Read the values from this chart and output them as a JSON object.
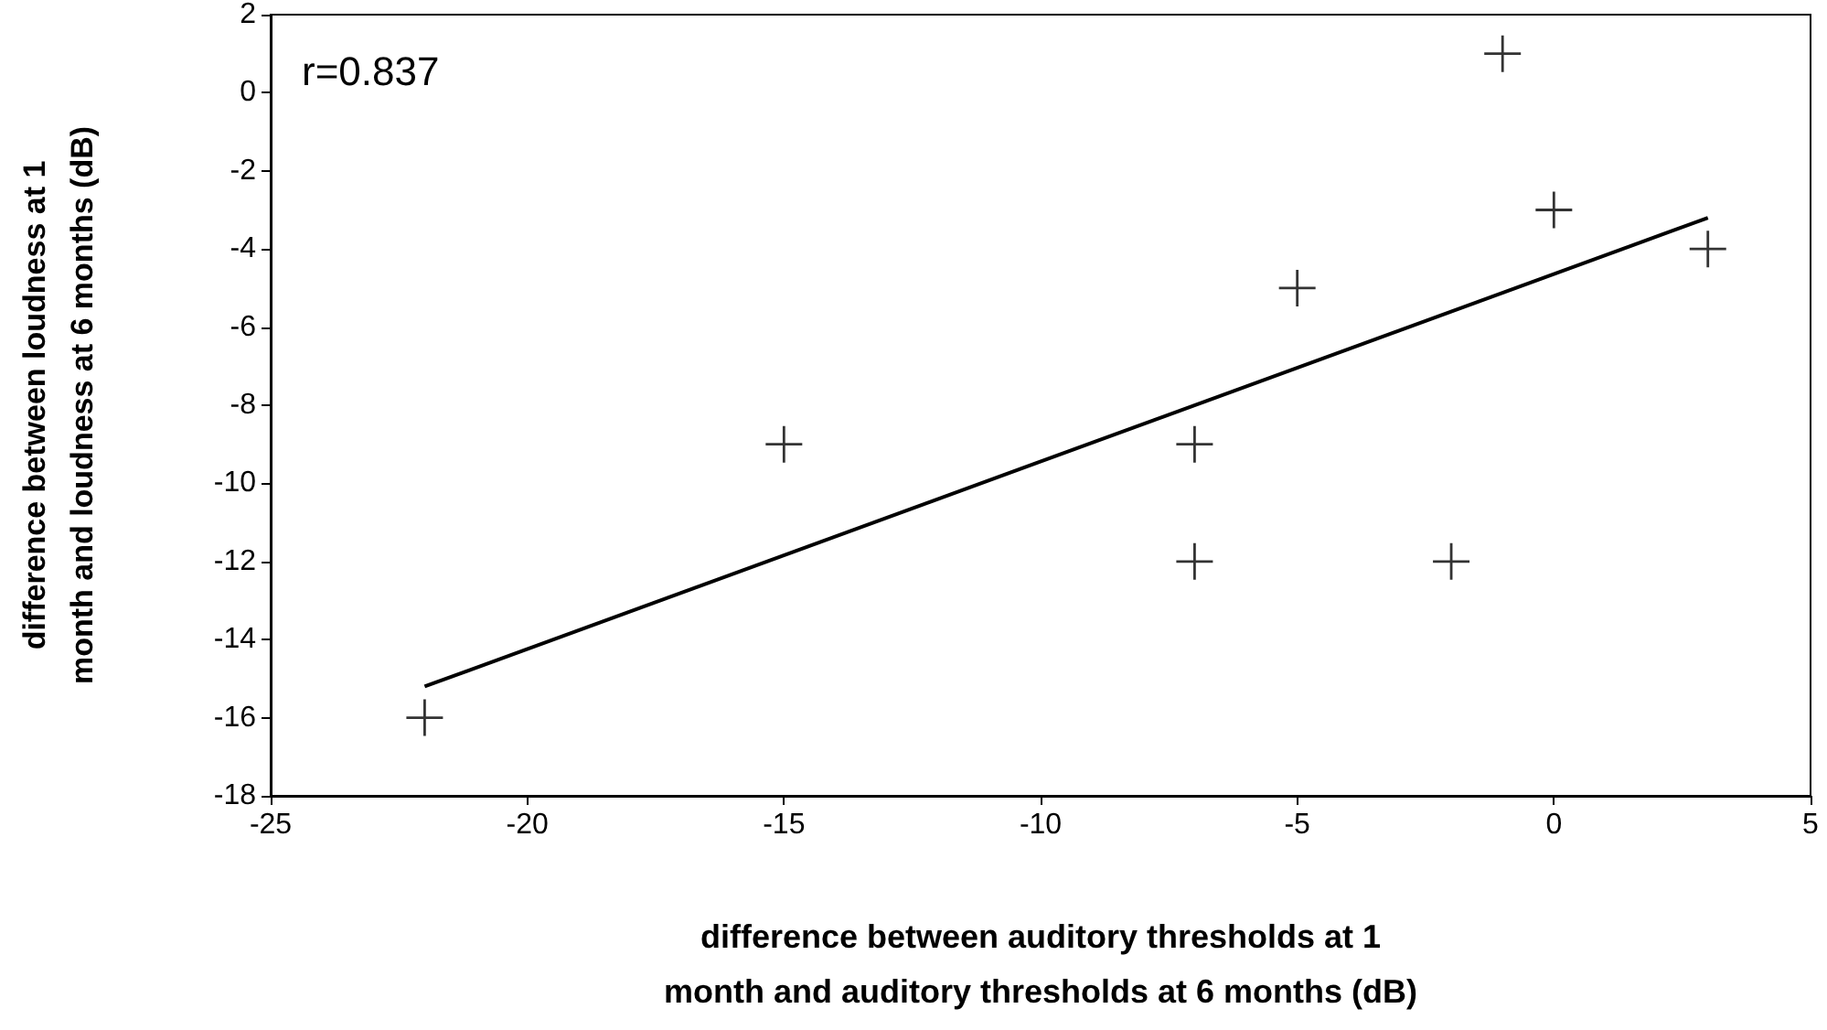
{
  "chart_data": {
    "type": "scatter",
    "xlabel": "difference between auditory thresholds at 1 month and auditory thresholds at 6 months (dB)",
    "ylabel": "difference between loudness at 1 month and loudness at 6 months (dB)",
    "annotations": [
      "r=0.837"
    ],
    "xlim": [
      -25,
      5
    ],
    "xticks": [
      -25,
      -20,
      -15,
      -10,
      -5,
      0,
      5
    ],
    "ylim": [
      -18,
      2
    ],
    "yticks": [
      -18,
      -16,
      -14,
      -12,
      -10,
      -8,
      -6,
      -4,
      -2,
      0,
      2
    ],
    "marker": "cross",
    "series": [
      {
        "type": "scatter",
        "color": "#000000",
        "x": [
          -22,
          -15,
          -7,
          -7,
          -5,
          -2,
          -1,
          0,
          3
        ],
        "values": [
          -16,
          -9,
          -9,
          -12,
          -5,
          -12,
          1,
          -3,
          -4
        ]
      },
      {
        "type": "line",
        "color": "#000000",
        "marker": "none",
        "line_style": "solid",
        "x": [
          -22,
          3
        ],
        "values": [
          -15.2,
          -3.2
        ]
      }
    ]
  }
}
